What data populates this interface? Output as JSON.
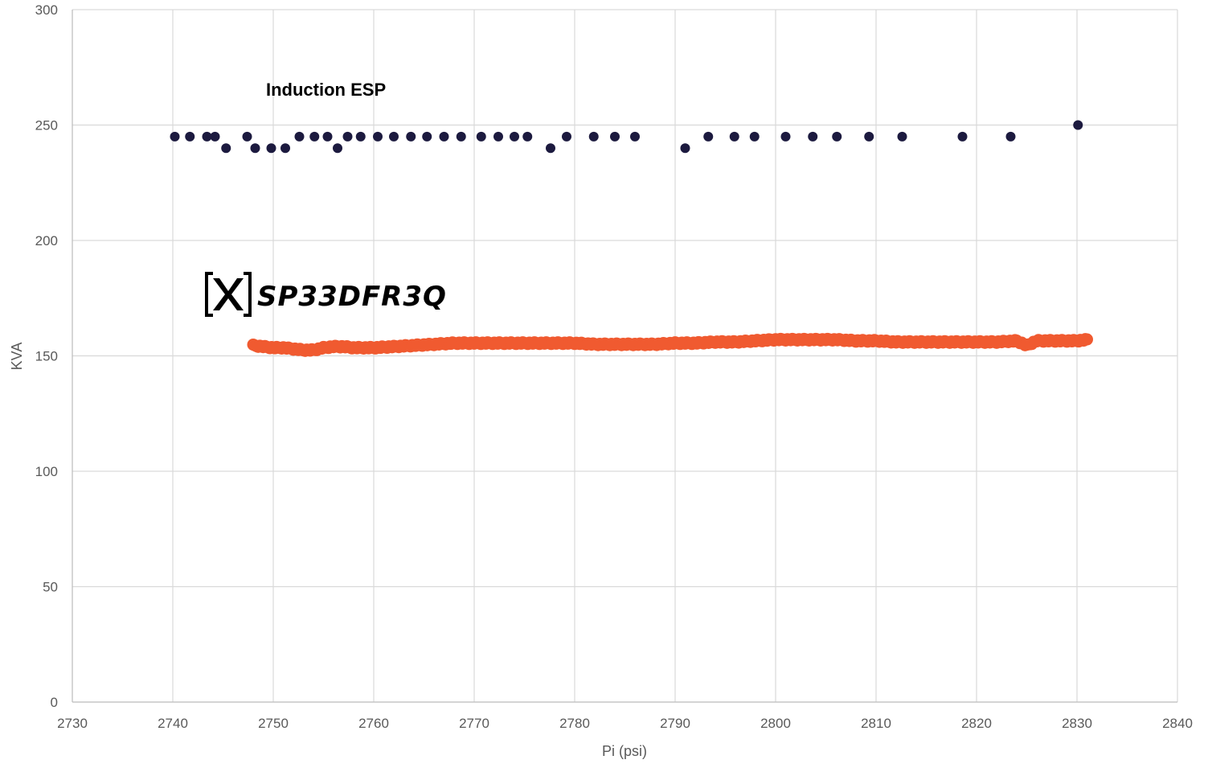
{
  "chart_data": {
    "type": "scatter",
    "title": "",
    "xlabel": "Pi (psi)",
    "ylabel": "KVA",
    "xlim": [
      2730,
      2840
    ],
    "ylim": [
      0,
      300
    ],
    "x_ticks": [
      2730,
      2740,
      2750,
      2760,
      2770,
      2780,
      2790,
      2800,
      2810,
      2820,
      2830,
      2840
    ],
    "y_ticks": [
      0,
      50,
      100,
      150,
      200,
      250,
      300
    ],
    "grid": true,
    "annotations": [
      {
        "text": "Induction ESP",
        "x": 2753,
        "y": 265
      }
    ],
    "logo": {
      "text": "SP33DFR3Q",
      "color": "#000000"
    },
    "series": [
      {
        "color": "#1c1a3f",
        "style": "markers",
        "x": [
          2740.2,
          2741.7,
          2743.4,
          2744.2,
          2745.3,
          2747.4,
          2748.2,
          2749.8,
          2751.2,
          2752.6,
          2754.1,
          2755.4,
          2756.4,
          2757.4,
          2758.7,
          2760.4,
          2762.0,
          2763.7,
          2765.3,
          2767.0,
          2768.7,
          2770.7,
          2772.4,
          2774.0,
          2775.3,
          2777.6,
          2779.2,
          2781.9,
          2784.0,
          2786.0,
          2791.0,
          2793.3,
          2795.9,
          2797.9,
          2801.0,
          2803.7,
          2806.1,
          2809.3,
          2812.6,
          2818.6,
          2823.4,
          2830.1
        ],
        "y": [
          245,
          245,
          245,
          245,
          240,
          245,
          240,
          240,
          240,
          245,
          245,
          245,
          240,
          245,
          245,
          245,
          245,
          245,
          245,
          245,
          245,
          245,
          245,
          245,
          245,
          240,
          245,
          245,
          245,
          245,
          240,
          245,
          245,
          245,
          245,
          245,
          245,
          245,
          245,
          245,
          245,
          250
        ]
      },
      {
        "color": "#f05a30",
        "style": "dense-markers",
        "x": [
          2748,
          2749,
          2750,
          2751,
          2752,
          2753,
          2754,
          2755,
          2756,
          2757,
          2758,
          2759,
          2760,
          2762,
          2764,
          2766,
          2768,
          2770,
          2772,
          2774,
          2776,
          2778,
          2780,
          2782,
          2784,
          2786,
          2788,
          2790,
          2792,
          2794,
          2796,
          2798,
          2800,
          2802,
          2804,
          2806,
          2808,
          2810,
          2812,
          2814,
          2816,
          2818,
          2820,
          2822,
          2824,
          2825,
          2826,
          2828,
          2830,
          2831
        ],
        "y": [
          154.5,
          154,
          153.5,
          153.5,
          153,
          152.5,
          152.5,
          153.5,
          154,
          154,
          153.5,
          153.5,
          153.5,
          154,
          154.5,
          155,
          155.5,
          155.5,
          155.5,
          155.5,
          155.5,
          155.5,
          155.5,
          155,
          155,
          155,
          155,
          155.5,
          155.5,
          156,
          156,
          156.5,
          157,
          157,
          157,
          157,
          156.5,
          156.5,
          156,
          156,
          156,
          156,
          156,
          156,
          156.5,
          154.5,
          156.5,
          156.5,
          156.5,
          157
        ]
      }
    ]
  }
}
